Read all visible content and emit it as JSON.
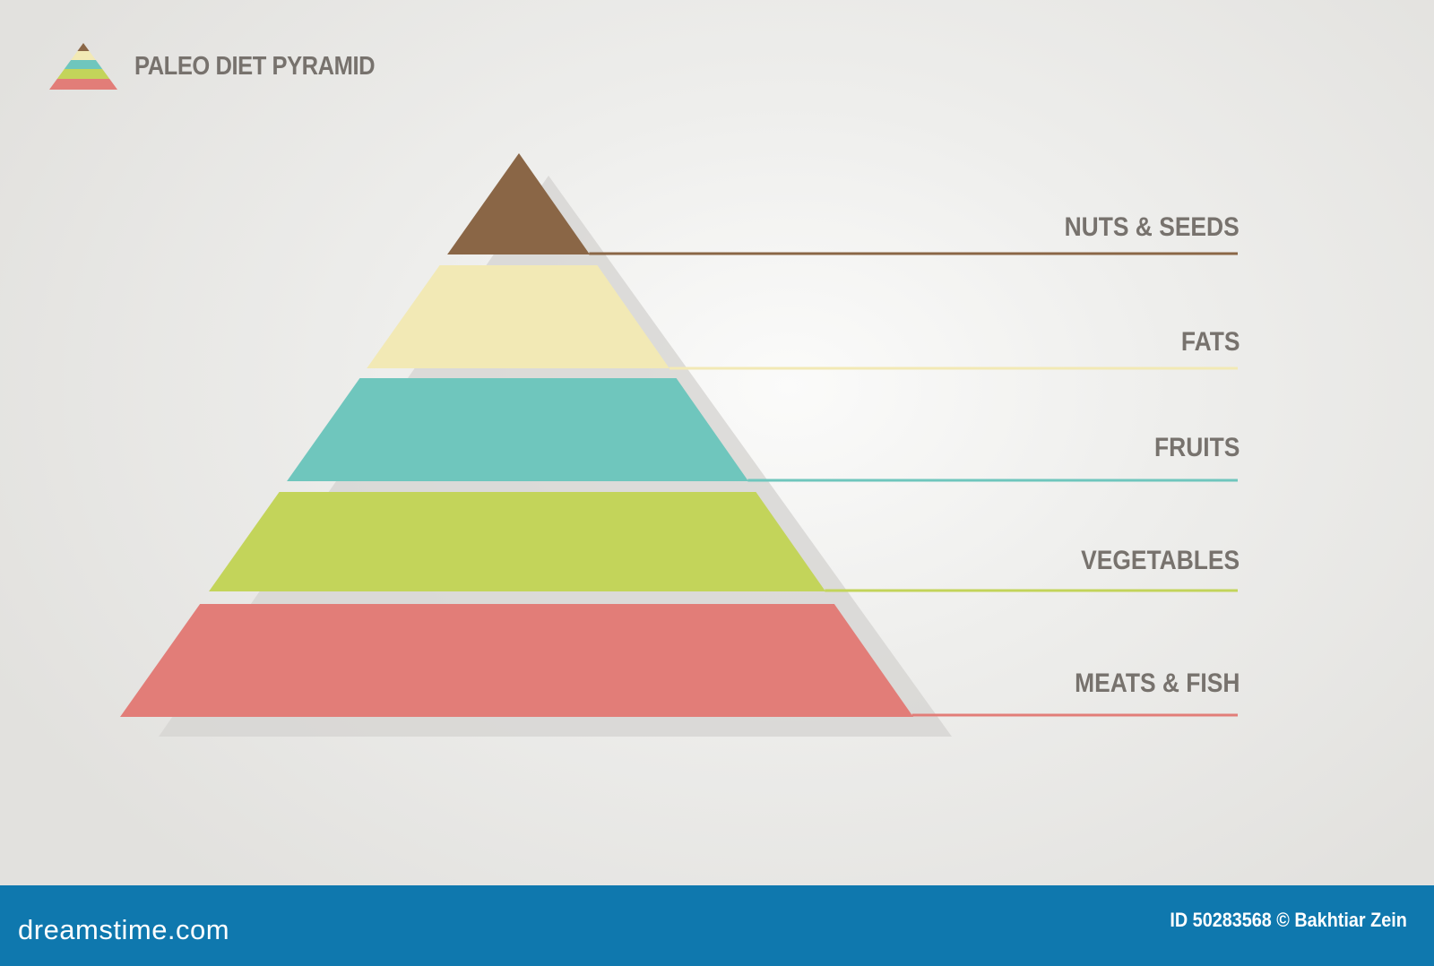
{
  "title": "PALEO DIET PYRAMID",
  "tiers": [
    {
      "label": "NUTS & SEEDS",
      "color": "#8a6646"
    },
    {
      "label": "FATS",
      "color": "#f2e9b5"
    },
    {
      "label": "FRUITS",
      "color": "#6fc6bd"
    },
    {
      "label": "VEGETABLES",
      "color": "#c3d45a"
    },
    {
      "label": "MEATS & FISH",
      "color": "#e27d78"
    }
  ],
  "footer": {
    "brand": "dreamstime.com",
    "credit": "ID 50283568 © Bakhtiar Zein",
    "color": "#0f78ae"
  }
}
